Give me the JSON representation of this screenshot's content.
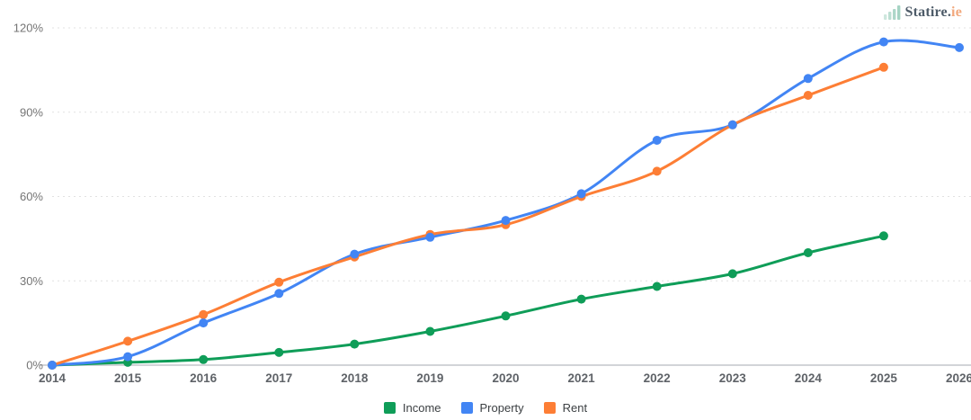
{
  "logo": {
    "text_primary": "Statire.",
    "text_suffix": "ie",
    "icon": "bar-chart-icon",
    "icon_color": "#a5d3c3",
    "primary_color": "#4d5b68",
    "suffix_color": "#f2a87d"
  },
  "chart_data": {
    "type": "line",
    "title": "",
    "xlabel": "",
    "ylabel": "",
    "x_categories": [
      "2014",
      "2015",
      "2016",
      "2017",
      "2018",
      "2019",
      "2020",
      "2021",
      "2022",
      "2023",
      "2024",
      "2025",
      "2026"
    ],
    "ylim": [
      0,
      120
    ],
    "yticks": [
      {
        "value": 0,
        "label": "0%"
      },
      {
        "value": 30,
        "label": "30%"
      },
      {
        "value": 60,
        "label": "60%"
      },
      {
        "value": 90,
        "label": "90%"
      },
      {
        "value": 120,
        "label": "120%"
      }
    ],
    "grid": "horizontal-dashed",
    "legend_position": "bottom-center",
    "series": [
      {
        "name": "Income",
        "color": "#0f9d58",
        "values": [
          0,
          1,
          2,
          4.5,
          7.5,
          12,
          17.5,
          23.5,
          28,
          32.5,
          40,
          46,
          null
        ]
      },
      {
        "name": "Property",
        "color": "#4285f4",
        "values": [
          0,
          3,
          15,
          25.5,
          39.5,
          45.5,
          51.5,
          61,
          80,
          85.5,
          102,
          115,
          113
        ]
      },
      {
        "name": "Rent",
        "color": "#fd7e35",
        "values": [
          0,
          8.5,
          18,
          29.5,
          38.5,
          46.5,
          50,
          60,
          69,
          85.5,
          96,
          106,
          null
        ]
      }
    ],
    "axis_colors": {
      "y_tick_label": "#757575",
      "x_tick_label": "#5f6368",
      "gridline": "#e1e1e1",
      "baseline": "#d2d4d8"
    }
  }
}
